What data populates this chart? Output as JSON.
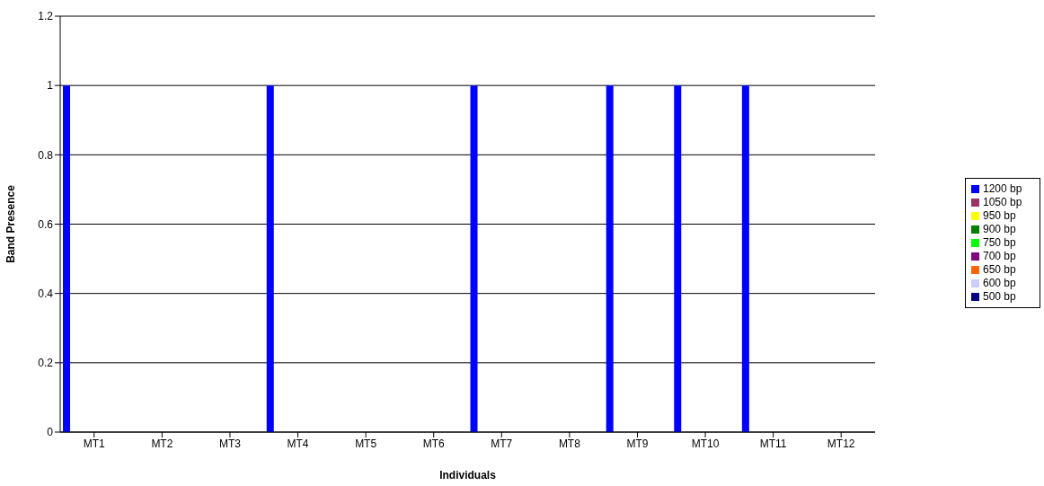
{
  "chart_data": {
    "type": "bar",
    "xlabel": "Individuals",
    "ylabel": "Band Presence",
    "categories": [
      "MT1",
      "MT2",
      "MT3",
      "MT4",
      "MT5",
      "MT6",
      "MT7",
      "MT8",
      "MT9",
      "MT10",
      "MT11",
      "MT12"
    ],
    "series": [
      {
        "name": "1200 bp",
        "color": "#0000ff",
        "values": [
          1,
          0,
          0,
          1,
          0,
          0,
          1,
          0,
          1,
          1,
          1,
          0
        ]
      },
      {
        "name": "1050 bp",
        "color": "#993366",
        "values": [
          0,
          0,
          0,
          0,
          0,
          0,
          0,
          0,
          0,
          0,
          0,
          0
        ]
      },
      {
        "name": "950 bp",
        "color": "#ffff00",
        "values": [
          0,
          0,
          0,
          0,
          0,
          0,
          0,
          0,
          0,
          0,
          0,
          0
        ]
      },
      {
        "name": "900 bp",
        "color": "#008000",
        "values": [
          0,
          0,
          0,
          0,
          0,
          0,
          0,
          0,
          0,
          0,
          0,
          0
        ]
      },
      {
        "name": "750 bp",
        "color": "#00ff00",
        "values": [
          0,
          0,
          0,
          0,
          0,
          0,
          0,
          0,
          0,
          0,
          0,
          0
        ]
      },
      {
        "name": "700 bp",
        "color": "#800080",
        "values": [
          0,
          0,
          0,
          0,
          0,
          0,
          0,
          0,
          0,
          0,
          0,
          0
        ]
      },
      {
        "name": "650 bp",
        "color": "#ff6600",
        "values": [
          0,
          0,
          0,
          0,
          0,
          0,
          0,
          0,
          0,
          0,
          0,
          0
        ]
      },
      {
        "name": "600 bp",
        "color": "#ccccff",
        "values": [
          0,
          0,
          0,
          0,
          0,
          0,
          0,
          0,
          0,
          0,
          0,
          0
        ]
      },
      {
        "name": "500 bp",
        "color": "#000080",
        "values": [
          0,
          0,
          0,
          0,
          0,
          0,
          0,
          0,
          0,
          0,
          0,
          0
        ]
      }
    ],
    "ylim": [
      0,
      1.2
    ],
    "yticks": [
      0,
      0.2,
      0.4,
      0.6,
      0.8,
      1,
      1.2
    ],
    "grid": "y",
    "legend": "right"
  }
}
